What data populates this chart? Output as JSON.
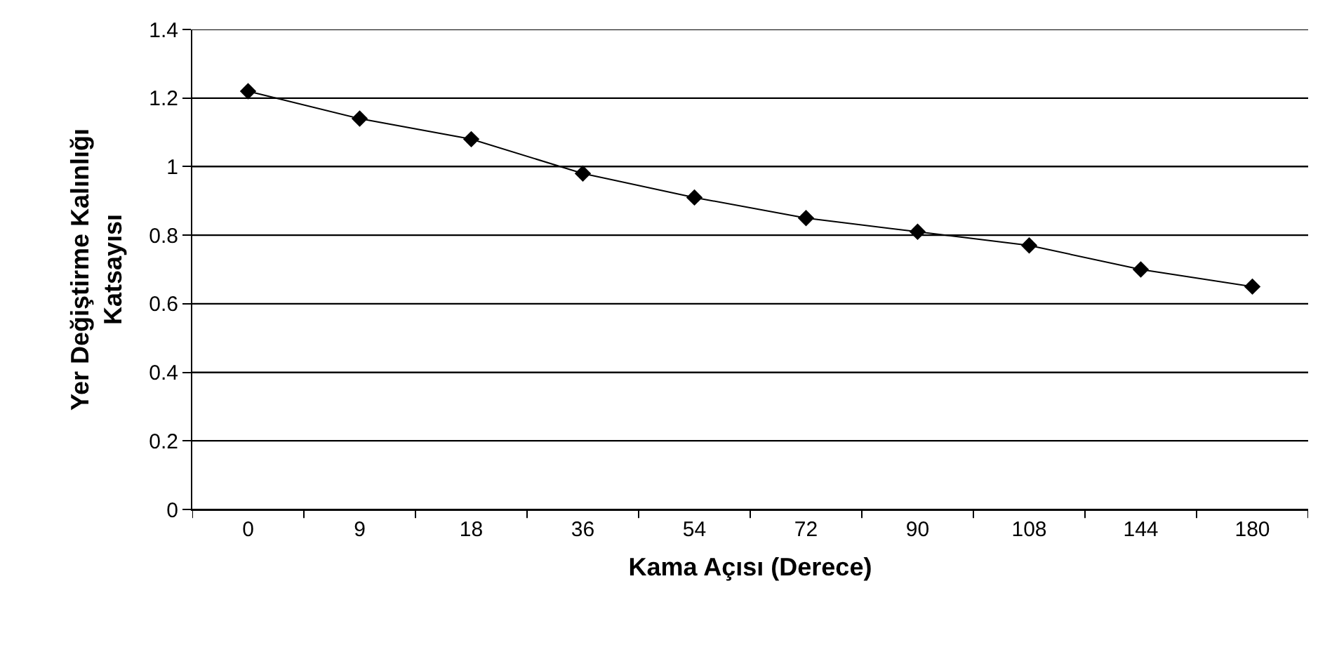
{
  "chart_data": {
    "type": "line",
    "xlabel": "Kama Açısı (Derece)",
    "ylabel": "Yer Değiştirme Kalınlığı\nKatsayısı",
    "categories": [
      "0",
      "9",
      "18",
      "36",
      "54",
      "72",
      "90",
      "108",
      "144",
      "180"
    ],
    "series": [
      {
        "color": "#000000",
        "values": [
          1.22,
          1.14,
          1.08,
          0.98,
          0.91,
          0.85,
          0.81,
          0.77,
          0.7,
          0.65
        ]
      }
    ],
    "ylim": [
      0,
      1.4
    ],
    "yticks": [
      0,
      0.2,
      0.4,
      0.6,
      0.8,
      1,
      1.2,
      1.4
    ],
    "grid": "y",
    "marker": "diamond",
    "line_style": "solid"
  }
}
